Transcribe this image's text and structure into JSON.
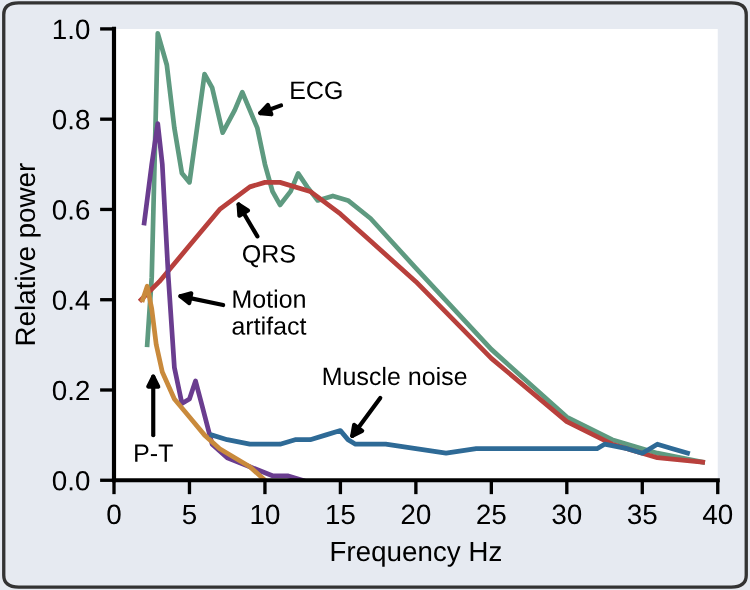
{
  "chart_data": {
    "type": "line",
    "xlabel": "Frequency Hz",
    "ylabel": "Relative power",
    "xlim": [
      0,
      40
    ],
    "xticks": [
      0,
      5,
      10,
      15,
      20,
      25,
      30,
      35,
      40
    ],
    "ylim": [
      0,
      1.0
    ],
    "yticks": [
      {
        "value": 0,
        "label": "0.0"
      },
      0.2,
      0.4,
      0.6,
      0.8,
      {
        "value": 1.0,
        "label": "1.0"
      }
    ],
    "grid": false,
    "legend": false,
    "marker": "none",
    "line_style": "solid",
    "series": [
      {
        "color": "#5e9a80",
        "x": [
          2.2,
          2.5,
          2.9,
          3.5,
          4.0,
          4.5,
          5.0,
          5.5,
          6.0,
          6.5,
          7.2,
          8.0,
          8.5,
          9.0,
          9.5,
          10.0,
          10.5,
          11.0,
          11.7,
          12.2,
          12.8,
          13.5,
          14.5,
          15.5,
          17,
          20,
          25,
          30,
          33,
          36,
          39
        ],
        "values": [
          0.3,
          0.45,
          0.99,
          0.92,
          0.78,
          0.68,
          0.66,
          0.78,
          0.9,
          0.87,
          0.77,
          0.82,
          0.86,
          0.82,
          0.78,
          0.7,
          0.64,
          0.61,
          0.64,
          0.68,
          0.65,
          0.62,
          0.63,
          0.62,
          0.58,
          0.47,
          0.29,
          0.14,
          0.09,
          0.06,
          0.04
        ]
      },
      {
        "color": "#b8403c",
        "x": [
          1.8,
          3,
          5,
          7,
          9,
          10,
          11,
          13,
          15,
          17,
          20,
          25,
          30,
          33,
          36,
          39
        ],
        "values": [
          0.4,
          0.44,
          0.52,
          0.6,
          0.65,
          0.66,
          0.66,
          0.64,
          0.59,
          0.53,
          0.44,
          0.27,
          0.13,
          0.08,
          0.05,
          0.04
        ]
      },
      {
        "color": "#6a3d8f",
        "x": [
          2.0,
          2.5,
          2.9,
          3.2,
          3.6,
          4.0,
          4.5,
          5.0,
          5.4,
          5.8,
          6.5,
          7.5,
          9,
          10.5,
          11.5,
          12.5
        ],
        "values": [
          0.57,
          0.7,
          0.79,
          0.7,
          0.45,
          0.25,
          0.17,
          0.18,
          0.22,
          0.17,
          0.08,
          0.05,
          0.03,
          0.01,
          0.01,
          0.0
        ]
      },
      {
        "color": "#c98a3c",
        "x": [
          1.9,
          2.2,
          2.5,
          2.8,
          3.2,
          4,
          5,
          6,
          7,
          8,
          9,
          10
        ],
        "values": [
          0.4,
          0.43,
          0.38,
          0.3,
          0.24,
          0.18,
          0.14,
          0.1,
          0.07,
          0.05,
          0.03,
          0.0
        ]
      },
      {
        "color": "#2e6a96",
        "x": [
          6.5,
          7.5,
          9,
          10,
          11,
          12,
          13,
          14,
          15,
          15.5,
          16,
          18,
          20,
          22,
          24,
          26,
          28,
          30,
          32,
          32.5,
          34,
          35,
          36,
          37,
          38
        ],
        "values": [
          0.1,
          0.09,
          0.08,
          0.08,
          0.08,
          0.09,
          0.09,
          0.1,
          0.11,
          0.09,
          0.08,
          0.08,
          0.07,
          0.06,
          0.07,
          0.07,
          0.07,
          0.07,
          0.07,
          0.08,
          0.07,
          0.06,
          0.08,
          0.07,
          0.06
        ]
      }
    ],
    "annotations": [
      {
        "text": "ECG",
        "x": 9.4,
        "y": 0.81
      },
      {
        "text": "QRS",
        "x": 8.1,
        "y": 0.62
      },
      {
        "text": "Motion\nartifact",
        "x": 4.1,
        "y": 0.41
      },
      {
        "text": "P-T",
        "x": 2.6,
        "y": 0.24
      },
      {
        "text": "Muscle noise",
        "x": 15.6,
        "y": 0.09
      }
    ]
  }
}
